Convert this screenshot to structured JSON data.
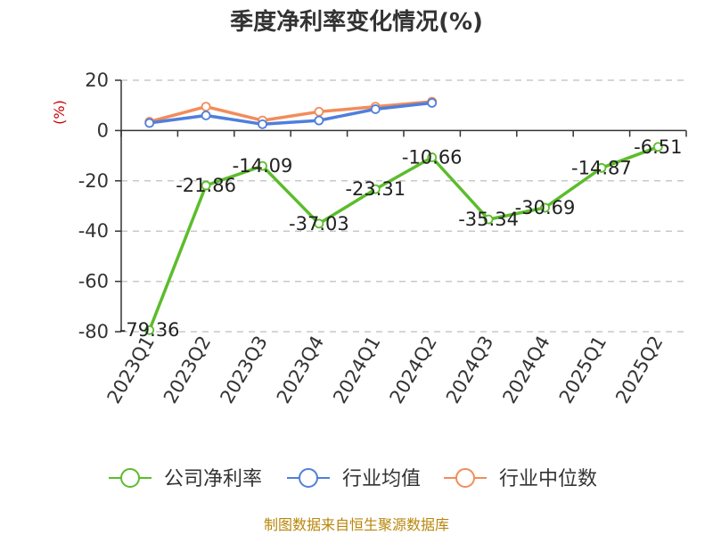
{
  "chart_data": {
    "type": "line",
    "title": "季度净利率变化情况(%)",
    "ylabel": "(%)",
    "xlabel": "",
    "categories": [
      "2023Q1",
      "2023Q2",
      "2023Q3",
      "2023Q4",
      "2024Q1",
      "2024Q2",
      "2024Q3",
      "2024Q4",
      "2025Q1",
      "2025Q2"
    ],
    "ylim": [
      -80,
      20
    ],
    "yticks": [
      20,
      0,
      -20,
      -40,
      -60,
      -80
    ],
    "grid": true,
    "legend_position": "bottom",
    "series": [
      {
        "name": "公司净利率",
        "color": "#5bbd2b",
        "values": [
          -79.36,
          -21.86,
          -14.09,
          -37.03,
          -23.31,
          -10.66,
          -35.34,
          -30.69,
          -14.87,
          -6.51
        ],
        "labels": [
          "-79.36",
          "-21.86",
          "-14.09",
          "-37.03",
          "-23.31",
          "-10.66",
          "-35.34",
          "-30.69",
          "-14.87",
          "-6.51"
        ]
      },
      {
        "name": "行业均值",
        "color": "#4f7fdc",
        "values": [
          3,
          6,
          2.5,
          4,
          8.5,
          11,
          null,
          null,
          null,
          null
        ]
      },
      {
        "name": "行业中位数",
        "color": "#f28c5a",
        "values": [
          3.5,
          9.5,
          4,
          7.5,
          9.5,
          11.5,
          null,
          null,
          null,
          null
        ]
      }
    ],
    "source": "制图数据来自恒生聚源数据库"
  }
}
